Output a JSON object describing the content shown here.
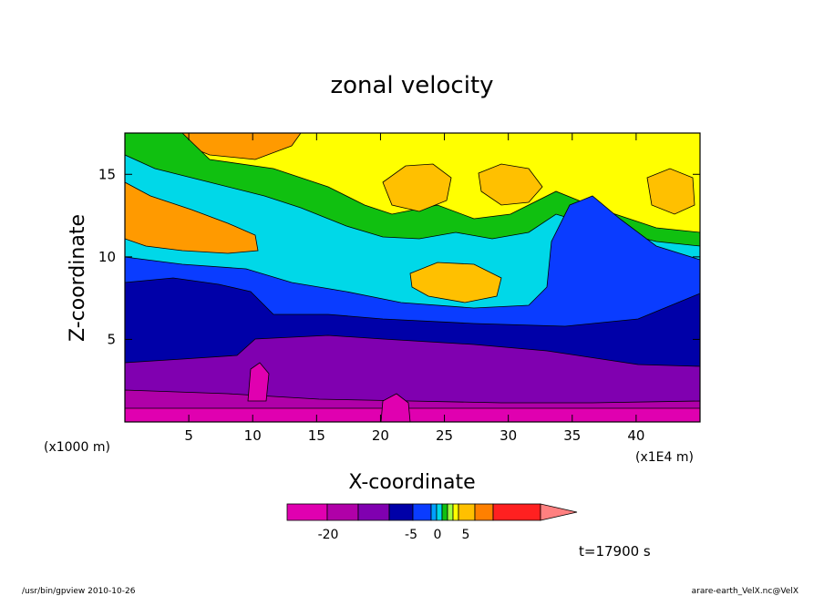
{
  "chart_data": {
    "type": "heatmap",
    "title": "zonal velocity",
    "xlabel": "X-coordinate",
    "ylabel": "Z-coordinate",
    "x_unit_left": "(x1000 m)",
    "x_unit_right": "(x1E4 m)",
    "xlim": [
      0,
      45
    ],
    "ylim": [
      0,
      17.5
    ],
    "x_ticks": [
      "5",
      "10",
      "15",
      "20",
      "25",
      "30",
      "35",
      "40"
    ],
    "x_tick_values": [
      5,
      10,
      15,
      20,
      25,
      30,
      35,
      40
    ],
    "y_ticks": [
      "5",
      "10",
      "15"
    ],
    "y_tick_values": [
      5,
      10,
      15
    ],
    "time_label": "t=17900 s",
    "colorbar": {
      "tick_labels": [
        "-20",
        "-5",
        "0",
        "5"
      ],
      "level_colors": [
        "#e000b0",
        "#b000a8",
        "#8000b0",
        "#0000a8",
        "#0a3cff",
        "#00a0ff",
        "#00d8e8",
        "#10c010",
        "#a0ff40",
        "#ffff00",
        "#ffc000",
        "#ff8000",
        "#ff2020",
        "#ff8080"
      ]
    },
    "regions": [
      {
        "level": "<-20",
        "color": "#e000b0",
        "zmax": 1.0
      },
      {
        "level": "-20 to -15",
        "color": "#b000a8",
        "zmax": 3.5
      },
      {
        "level": "-15 to -10",
        "color": "#8000b0",
        "zmax": 5.0
      },
      {
        "level": "-10 to -5",
        "color": "#0000a8",
        "zmax": 8.5
      },
      {
        "level": "-5 to -3",
        "color": "#0a3cff",
        "zmax": 10.0
      },
      {
        "level": "0 to 3",
        "color": "#10c010",
        "zmax": 14.0
      },
      {
        "level": "3 to 5",
        "color": "#ffff00",
        "zmax": 17.5
      }
    ]
  },
  "footer": {
    "left": "/usr/bin/gpview   2010-10-26",
    "right": "arare-earth_VelX.nc@VelX"
  }
}
